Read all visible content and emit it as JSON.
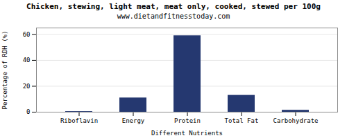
{
  "chart_data": {
    "type": "bar",
    "title": "Chicken, stewing, light meat, meat only, cooked, stewed per 100g",
    "subtitle": "www.dietandfitnesstoday.com",
    "xlabel": "Different Nutrients",
    "ylabel": "Percentage of RDH (%)",
    "categories": [
      "Riboflavin",
      "Energy",
      "Protein",
      "Total Fat",
      "Carbohydrate"
    ],
    "values": [
      0.5,
      11,
      59,
      13,
      1.5
    ],
    "color": "#253870",
    "ylim": [
      0,
      65
    ],
    "yticks": [
      0,
      20,
      40,
      60
    ],
    "grid": true
  }
}
